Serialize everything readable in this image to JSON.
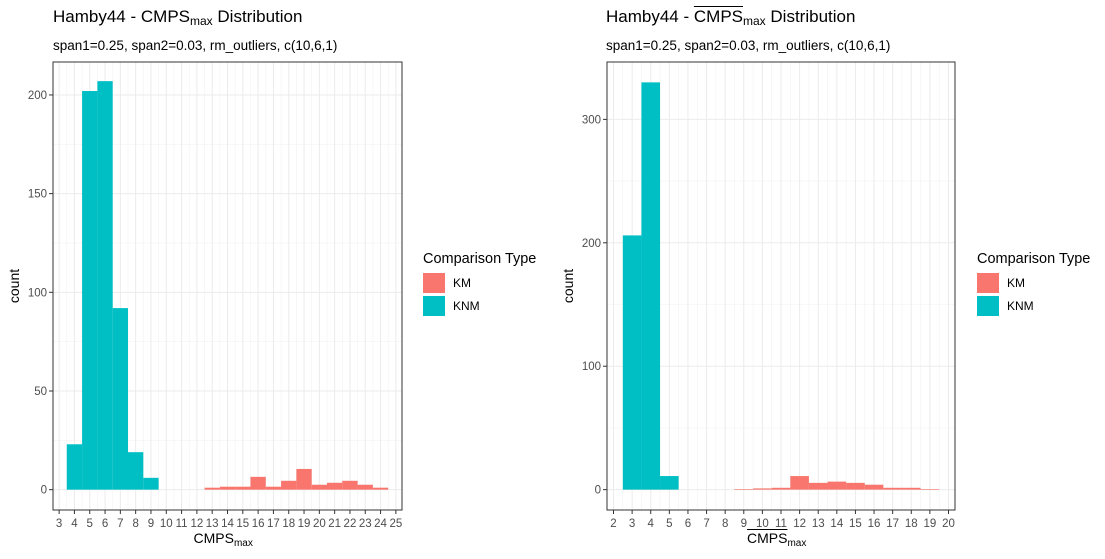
{
  "colors": {
    "KM": "#F8766D",
    "KNM": "#00BFC4"
  },
  "legend": {
    "title": "Comparison Type",
    "items": [
      "KM",
      "KNM"
    ]
  },
  "chart_data": [
    {
      "type": "bar",
      "title_prefix": "Hamby44 - ",
      "title_main": "CMPS",
      "title_sub": "max",
      "title_suffix": " Distribution",
      "title_overline": false,
      "subtitle": "span1=0.25, span2=0.03, rm_outliers, c(10,6,1)",
      "xlabel_main": "CMPS",
      "xlabel_sub": "max",
      "ylabel": "count",
      "xlim": [
        2.6,
        25.4
      ],
      "ylim": [
        -10.3,
        216.7
      ],
      "x_ticks": [
        3,
        4,
        5,
        6,
        7,
        8,
        9,
        10,
        11,
        12,
        13,
        14,
        15,
        16,
        17,
        18,
        19,
        20,
        21,
        22,
        23,
        24,
        25
      ],
      "y_ticks": [
        0,
        50,
        100,
        150,
        200
      ],
      "grid": true,
      "legend_position": "right",
      "series": [
        {
          "name": "KNM",
          "x": [
            4,
            5,
            6,
            7,
            8,
            9
          ],
          "values": [
            23,
            202,
            207,
            92,
            19,
            6
          ]
        },
        {
          "name": "KM",
          "x": [
            13,
            14,
            15,
            16,
            17,
            18,
            19,
            20,
            21,
            22,
            23,
            24
          ],
          "values": [
            1,
            1.5,
            1.5,
            6.5,
            1.5,
            4.5,
            10.5,
            2.5,
            3.5,
            4.5,
            2.5,
            1
          ]
        }
      ]
    },
    {
      "type": "bar",
      "title_prefix": "Hamby44 - ",
      "title_main": "CMPS",
      "title_sub": "max",
      "title_suffix": " Distribution",
      "title_overline": true,
      "subtitle": "span1=0.25, span2=0.03, rm_outliers, c(10,6,1)",
      "xlabel_main": "CMPS",
      "xlabel_sub": "max",
      "ylabel": "count",
      "xlim": [
        1.65,
        20.35
      ],
      "ylim": [
        -16.5,
        346.5
      ],
      "x_ticks": [
        2,
        3,
        4,
        5,
        6,
        7,
        8,
        9,
        10,
        11,
        12,
        13,
        14,
        15,
        16,
        17,
        18,
        19,
        20
      ],
      "y_ticks": [
        0,
        100,
        200,
        300
      ],
      "grid": true,
      "legend_position": "right",
      "series": [
        {
          "name": "KNM",
          "x": [
            3,
            4,
            5
          ],
          "values": [
            206,
            330,
            11
          ]
        },
        {
          "name": "KM",
          "x": [
            9,
            10,
            11,
            12,
            13,
            14,
            15,
            16,
            17,
            18,
            19
          ],
          "values": [
            0.5,
            1,
            1.5,
            11,
            5.5,
            6.5,
            5.5,
            4,
            1.5,
            1.5,
            0.5
          ]
        }
      ]
    }
  ]
}
